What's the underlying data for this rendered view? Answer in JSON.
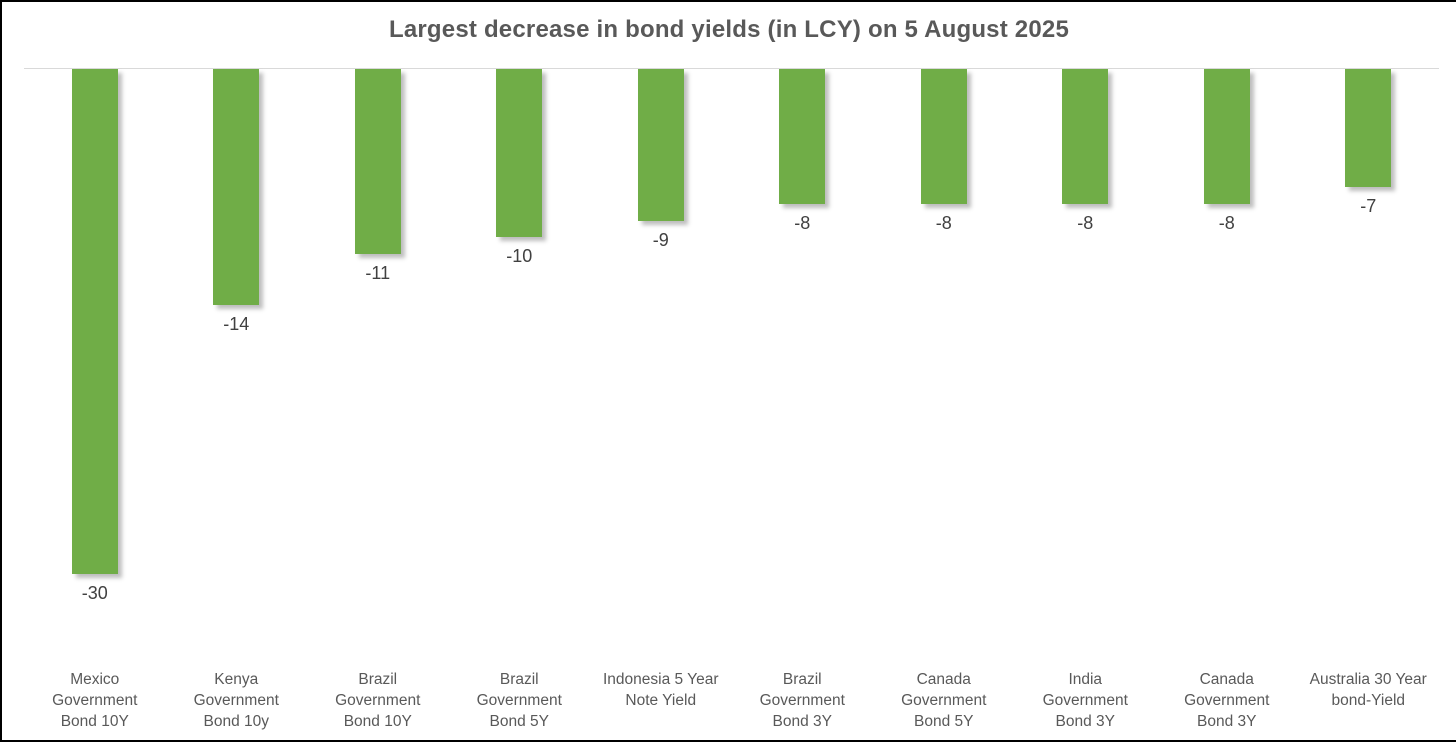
{
  "window": {
    "background": "#FFFFFF",
    "border_color": "#000000"
  },
  "chart_data": {
    "type": "bar",
    "title": "Largest decrease in bond yields (in LCY) on 5 August 2025",
    "orientation": "vertical",
    "categories": [
      "Mexico Government Bond 10Y",
      "Kenya Government Bond 10y",
      "Brazil Government Bond 10Y",
      "Brazil Government Bond 5Y",
      "Indonesia 5 Year Note Yield",
      "Brazil Government Bond 3Y",
      "Canada Government Bond 5Y",
      "India Government Bond 3Y",
      "Canada Government Bond 3Y",
      "Australia 30 Year bond-Yield"
    ],
    "category_lines": [
      [
        "Mexico",
        "Government",
        "Bond 10Y"
      ],
      [
        "Kenya",
        "Government",
        "Bond 10y"
      ],
      [
        "Brazil",
        "Government",
        "Bond 10Y"
      ],
      [
        "Brazil",
        "Government",
        "Bond 5Y"
      ],
      [
        "Indonesia 5 Year",
        "Note Yield"
      ],
      [
        "Brazil",
        "Government",
        "Bond 3Y"
      ],
      [
        "Canada",
        "Government",
        "Bond 5Y"
      ],
      [
        "India",
        "Government",
        "Bond 3Y"
      ],
      [
        "Canada",
        "Government",
        "Bond 3Y"
      ],
      [
        "Australia 30 Year",
        "bond-Yield"
      ]
    ],
    "values": [
      -30,
      -14,
      -11,
      -10,
      -9,
      -8,
      -8,
      -8,
      -8,
      -7
    ],
    "data_labels": [
      "-30",
      "-14",
      "-11",
      "-10",
      "-9",
      "-8",
      "-8",
      "-8",
      "-8",
      "-7"
    ],
    "xlabel": "",
    "ylabel": "",
    "ylim": [
      -32,
      0
    ],
    "grid": "off",
    "legend": "none",
    "bar_color": "#70AD47",
    "title_color": "#595959",
    "value_label_color": "#404040",
    "category_label_color": "#595959",
    "baseline_color": "#D9D9D9"
  }
}
